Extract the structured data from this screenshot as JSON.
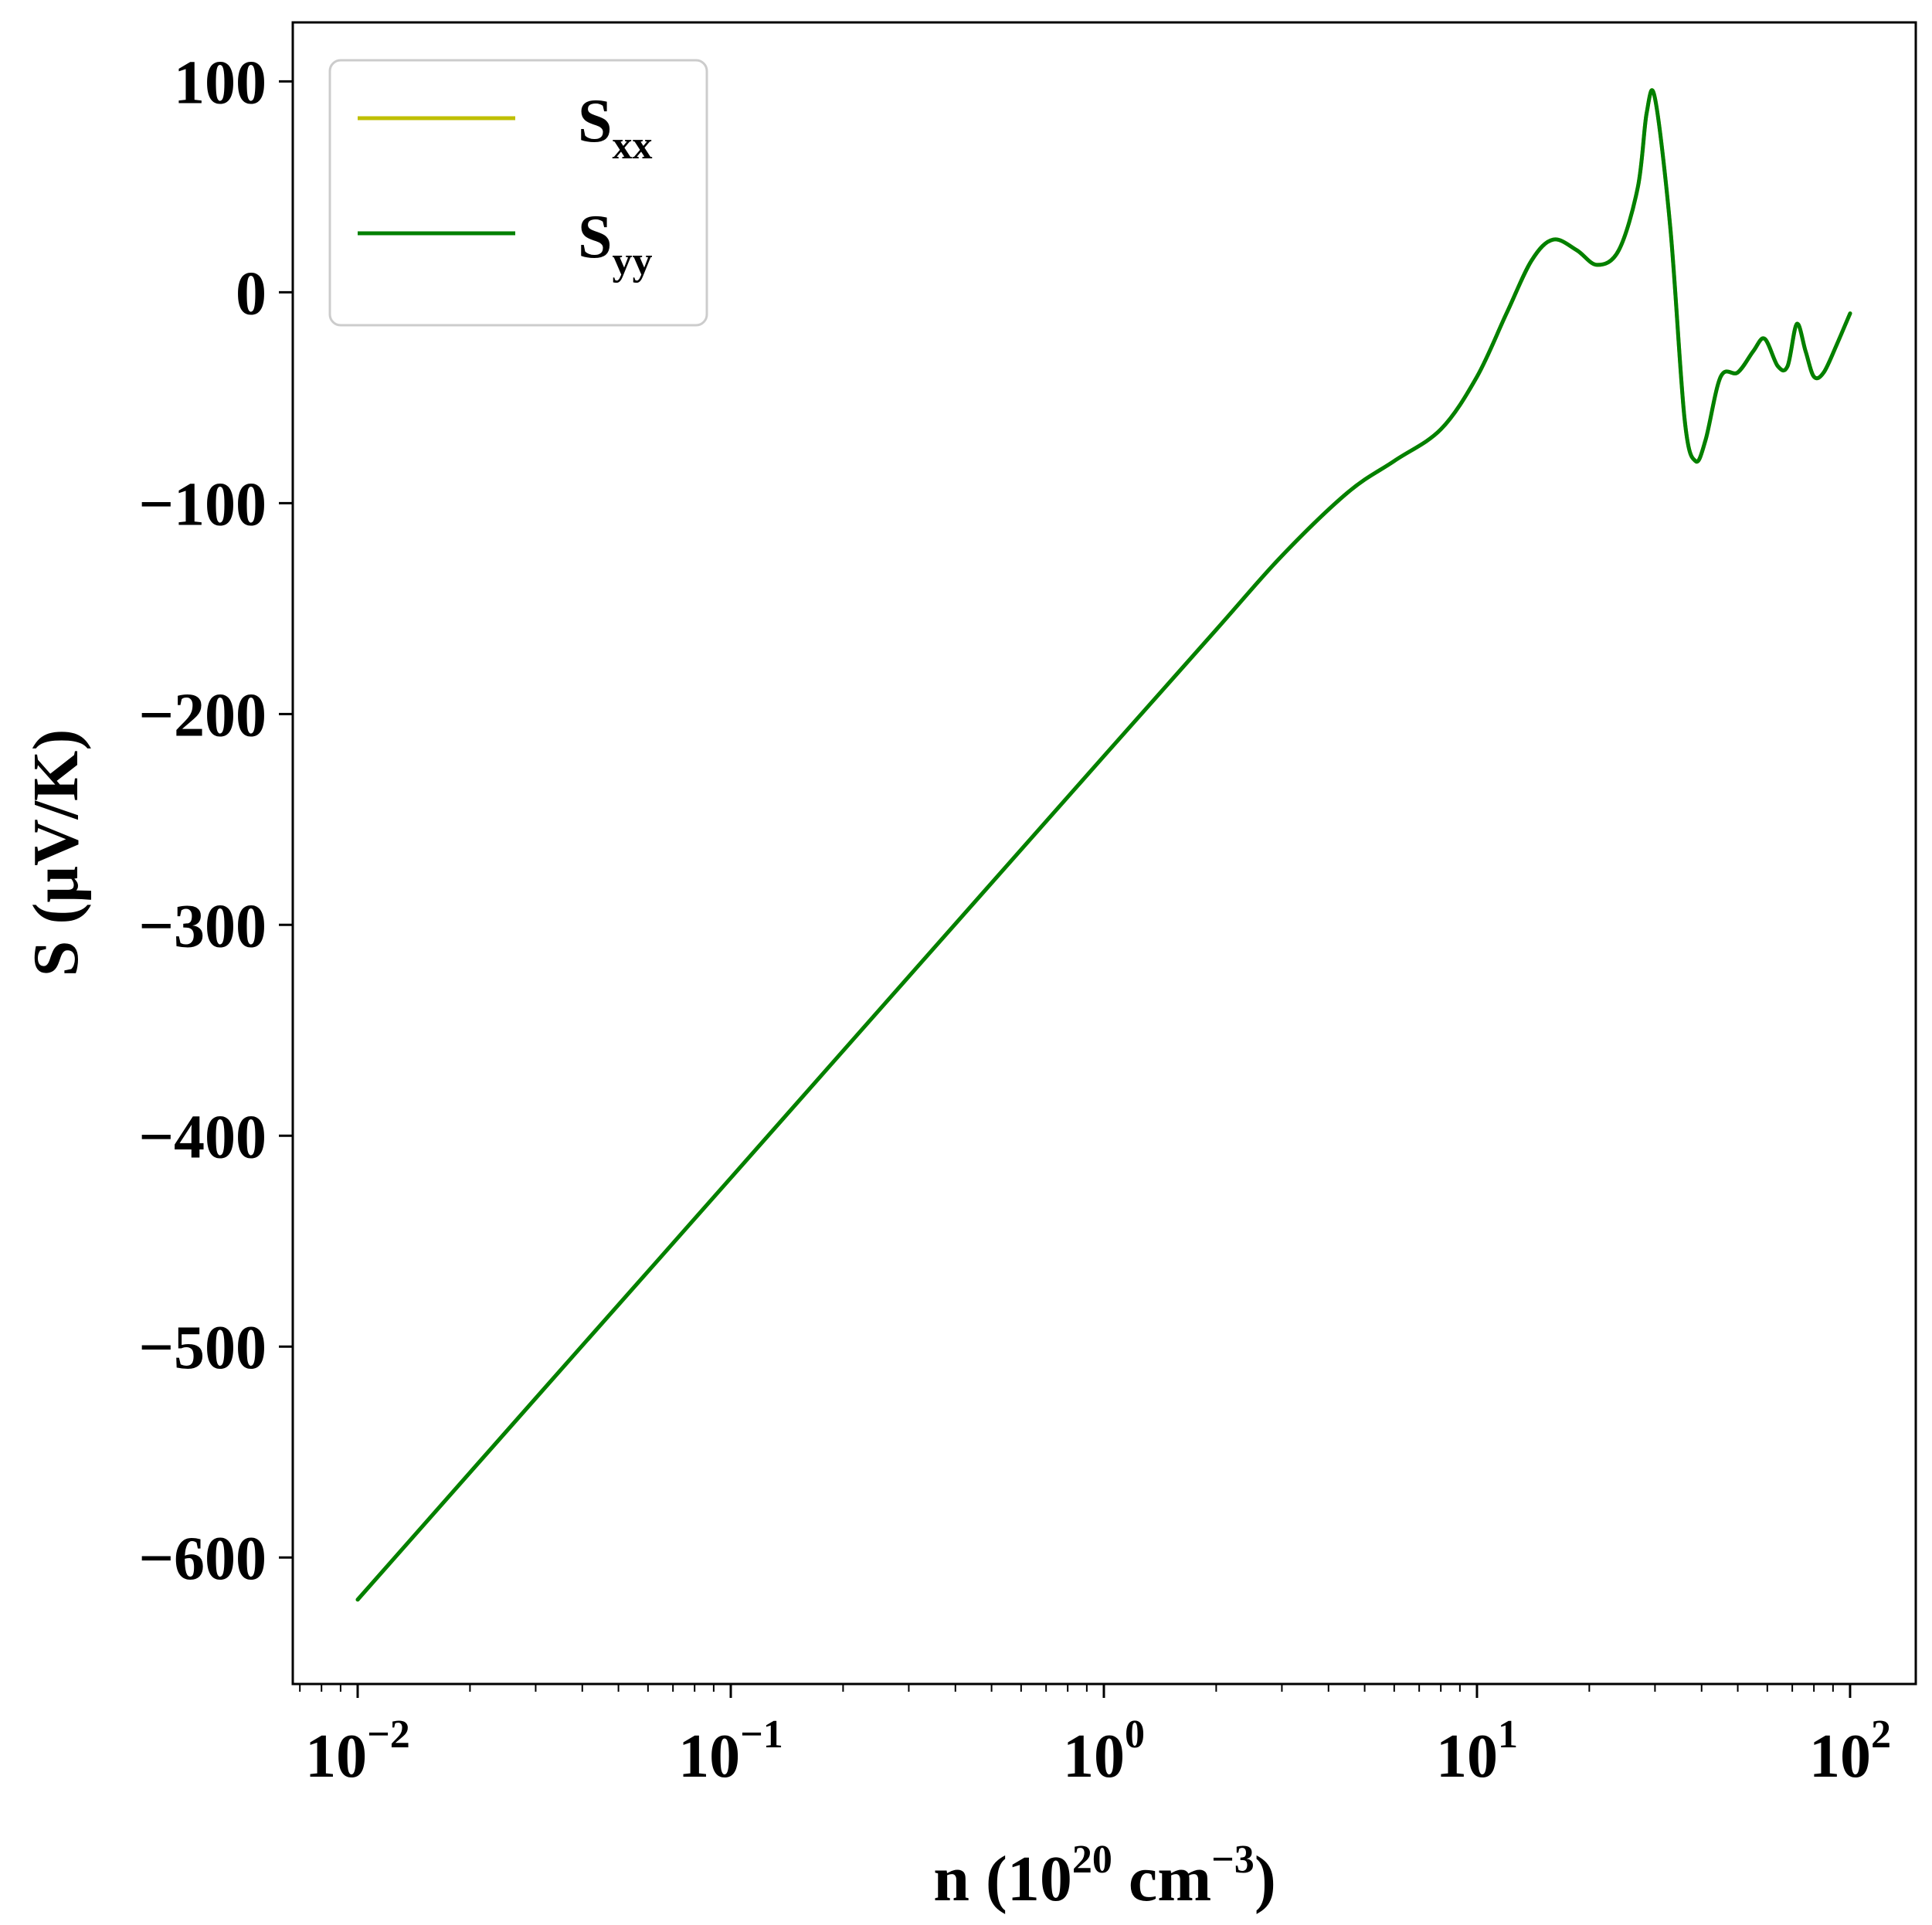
{
  "chart_data": {
    "type": "line",
    "xscale": "log",
    "xlabel_parts": {
      "main": "n (10",
      "exp1": "20",
      "mid": " cm",
      "exp2": "−3",
      "end": ")"
    },
    "ylabel": "S (μV/K)",
    "xlim": [
      0.0067,
      150
    ],
    "ylim": [
      -660,
      128
    ],
    "xticks": [
      {
        "value": 0.01,
        "base": "10",
        "exp": "−2"
      },
      {
        "value": 0.1,
        "base": "10",
        "exp": "−1"
      },
      {
        "value": 1,
        "base": "10",
        "exp": "0"
      },
      {
        "value": 10,
        "base": "10",
        "exp": "1"
      },
      {
        "value": 100,
        "base": "10",
        "exp": "2"
      }
    ],
    "yticks": [
      {
        "value": 100,
        "label": "100"
      },
      {
        "value": 0,
        "label": "0"
      },
      {
        "value": -100,
        "label": "−100"
      },
      {
        "value": -200,
        "label": "−200"
      },
      {
        "value": -300,
        "label": "−300"
      },
      {
        "value": -400,
        "label": "−400"
      },
      {
        "value": -500,
        "label": "−500"
      },
      {
        "value": -600,
        "label": "−600"
      }
    ],
    "grid": false,
    "legend_position": "top-left",
    "series": [
      {
        "name": "S_xx",
        "legend_main": "S",
        "legend_sub": "xx",
        "color": "#bfbf00",
        "x": [
          0.01,
          0.0316,
          0.1,
          0.316,
          1,
          2,
          3,
          4.5,
          6,
          8,
          10,
          12,
          14,
          16,
          18.5,
          21,
          24,
          27,
          28.5,
          30,
          33,
          36,
          38.5,
          41,
          45,
          50,
          55,
          59,
          64,
          68,
          72,
          76,
          80,
          85,
          92,
          100
        ],
        "y": [
          -620,
          -520,
          -420,
          -320,
          -220,
          -160,
          -125,
          -95,
          -80,
          -65,
          -40,
          -10,
          15,
          25,
          20,
          13,
          20,
          50,
          85,
          92,
          30,
          -60,
          -80,
          -70,
          -40,
          -38,
          -28,
          -22,
          -35,
          -35,
          -15,
          -28,
          -40,
          -38,
          -25,
          -10
        ]
      },
      {
        "name": "S_yy",
        "legend_main": "S",
        "legend_sub": "yy",
        "color": "#008000",
        "x": [
          0.01,
          0.0316,
          0.1,
          0.316,
          1,
          2,
          3,
          4.5,
          6,
          8,
          10,
          12,
          14,
          16,
          18.5,
          21,
          24,
          27,
          28.5,
          30,
          33,
          36,
          38.5,
          41,
          45,
          50,
          55,
          59,
          64,
          68,
          72,
          76,
          80,
          85,
          92,
          100
        ],
        "y": [
          -620,
          -520,
          -420,
          -320,
          -220,
          -160,
          -125,
          -95,
          -80,
          -65,
          -40,
          -10,
          15,
          25,
          20,
          13,
          20,
          50,
          85,
          92,
          30,
          -60,
          -80,
          -70,
          -40,
          -38,
          -28,
          -22,
          -35,
          -35,
          -15,
          -28,
          -40,
          -38,
          -25,
          -10
        ]
      }
    ]
  }
}
